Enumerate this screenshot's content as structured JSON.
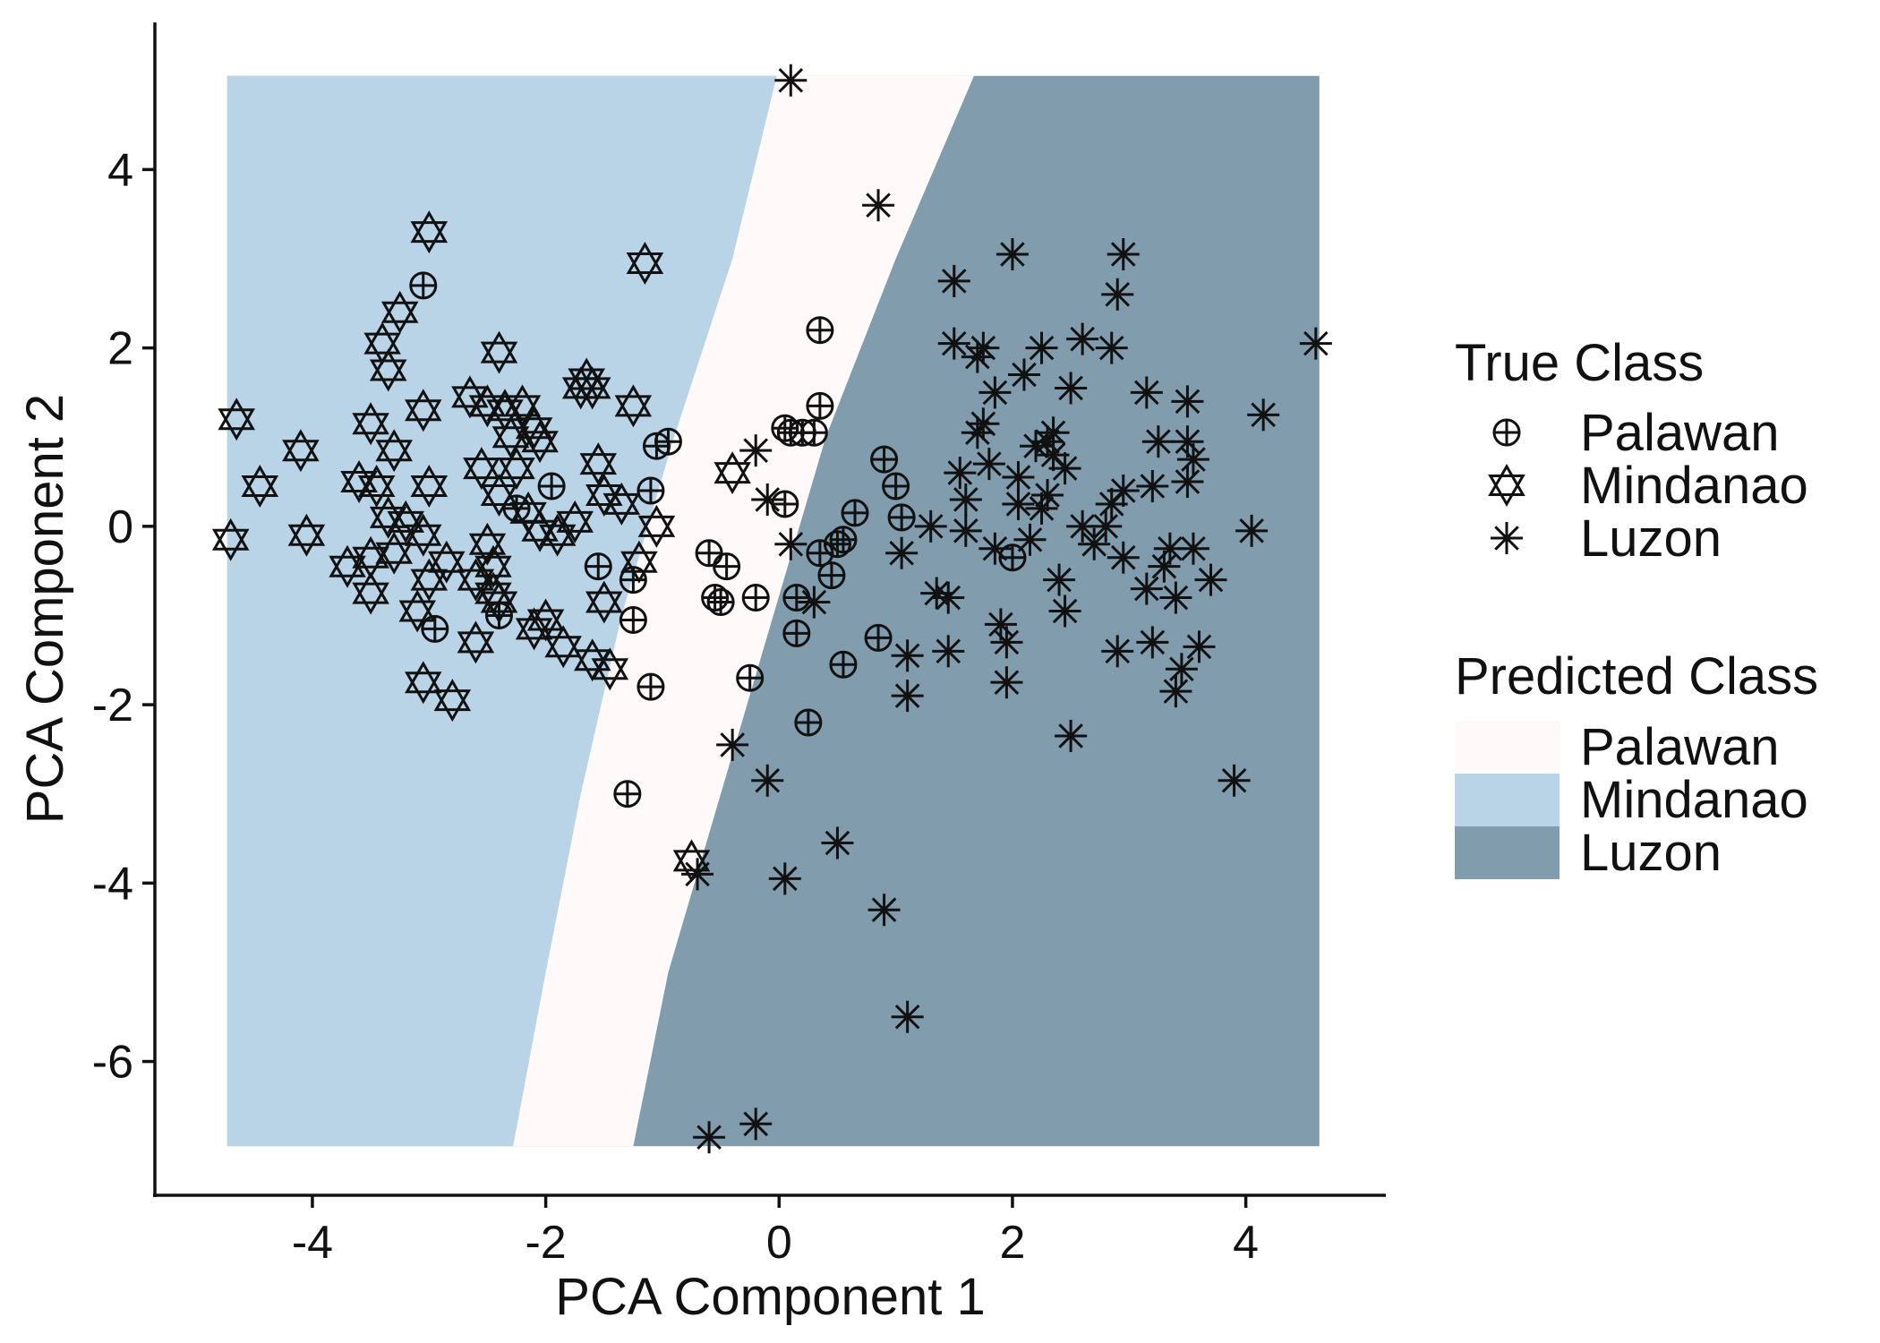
{
  "chart_data": {
    "type": "scatter",
    "title": "",
    "xlabel": "PCA Component 1",
    "ylabel": "PCA Component 2",
    "xlim": [
      -5.35,
      5.2
    ],
    "ylim": [
      -7.5,
      5.65
    ],
    "x_ticks": [
      -4,
      -2,
      0,
      2,
      4
    ],
    "y_ticks": [
      -6,
      -4,
      -2,
      0,
      2,
      4
    ],
    "x_tick_labels": [
      "-4",
      "-2",
      "0",
      "2",
      "4"
    ],
    "y_tick_labels": [
      "-6",
      "-4",
      "-2",
      "0",
      "2",
      "4"
    ],
    "grid": false,
    "legend_placement": "right",
    "true_class_legend": {
      "title": "True Class",
      "entries": [
        {
          "label": "Palawan",
          "marker": "circle-plus"
        },
        {
          "label": "Mindanao",
          "marker": "hexagram"
        },
        {
          "label": "Luzon",
          "marker": "asterisk"
        }
      ]
    },
    "predicted_class_legend": {
      "title": "Predicted Class",
      "entries": [
        {
          "label": "Palawan",
          "color": "#fff9fa"
        },
        {
          "label": "Mindanao",
          "color": "#b9d4e6"
        },
        {
          "label": "Luzon",
          "color": "#809cad"
        }
      ]
    },
    "decision_regions": {
      "x_range": [
        -4.73,
        4.63
      ],
      "y_range": [
        -6.95,
        5.05
      ],
      "boundary_mindanao_palawan": [
        [
          -2.28,
          -6.95
        ],
        [
          -2.0,
          -5.0
        ],
        [
          -1.7,
          -3.0
        ],
        [
          -1.35,
          -1.0
        ],
        [
          -0.9,
          1.0
        ],
        [
          -0.4,
          3.0
        ],
        [
          -0.02,
          5.05
        ]
      ],
      "boundary_palawan_luzon": [
        [
          -1.25,
          -6.95
        ],
        [
          -0.95,
          -5.0
        ],
        [
          -0.5,
          -3.0
        ],
        [
          -0.05,
          -1.0
        ],
        [
          0.4,
          1.0
        ],
        [
          1.0,
          3.0
        ],
        [
          1.67,
          5.05
        ]
      ]
    },
    "series": [
      {
        "name": "Palawan",
        "marker": "circle-plus",
        "points": [
          [
            -3.05,
            2.7
          ],
          [
            -2.95,
            -1.15
          ],
          [
            -2.4,
            -1.0
          ],
          [
            -2.25,
            0.2
          ],
          [
            -1.95,
            0.45
          ],
          [
            -1.55,
            -0.45
          ],
          [
            -1.25,
            -1.05
          ],
          [
            -1.25,
            -0.6
          ],
          [
            -1.1,
            0.4
          ],
          [
            -1.1,
            -1.8
          ],
          [
            -1.05,
            0.9
          ],
          [
            -0.95,
            0.95
          ],
          [
            -1.3,
            -3.0
          ],
          [
            -0.6,
            -0.3
          ],
          [
            -0.55,
            -0.8
          ],
          [
            -0.5,
            -0.85
          ],
          [
            -0.45,
            -0.45
          ],
          [
            -0.25,
            -1.7
          ],
          [
            -0.2,
            -0.8
          ],
          [
            0.05,
            0.25
          ],
          [
            0.05,
            1.1
          ],
          [
            0.1,
            1.05
          ],
          [
            0.15,
            -0.8
          ],
          [
            0.15,
            -1.2
          ],
          [
            0.2,
            1.05
          ],
          [
            0.3,
            1.05
          ],
          [
            0.35,
            2.2
          ],
          [
            0.35,
            1.35
          ],
          [
            0.35,
            -0.3
          ],
          [
            0.25,
            -2.2
          ],
          [
            0.45,
            -0.55
          ],
          [
            0.5,
            -0.2
          ],
          [
            0.55,
            -0.15
          ],
          [
            0.55,
            -1.55
          ],
          [
            0.65,
            0.15
          ],
          [
            0.85,
            -1.25
          ],
          [
            0.9,
            0.75
          ],
          [
            1.0,
            0.45
          ],
          [
            1.05,
            0.1
          ],
          [
            2.0,
            -0.35
          ]
        ]
      },
      {
        "name": "Mindanao",
        "marker": "hexagram",
        "points": [
          [
            -4.65,
            1.2
          ],
          [
            -4.7,
            -0.15
          ],
          [
            -4.45,
            0.45
          ],
          [
            -4.1,
            0.85
          ],
          [
            -4.05,
            -0.1
          ],
          [
            -3.7,
            -0.45
          ],
          [
            -3.6,
            0.5
          ],
          [
            -3.5,
            -0.35
          ],
          [
            -3.5,
            -0.75
          ],
          [
            -3.5,
            1.15
          ],
          [
            -3.45,
            0.45
          ],
          [
            -3.4,
            2.05
          ],
          [
            -3.35,
            1.75
          ],
          [
            -3.3,
            -0.3
          ],
          [
            -3.3,
            0.85
          ],
          [
            -3.35,
            0.1
          ],
          [
            -3.25,
            2.4
          ],
          [
            -3.2,
            0.05
          ],
          [
            -3.05,
            1.3
          ],
          [
            -3.05,
            -0.1
          ],
          [
            -3.0,
            0.45
          ],
          [
            -3.0,
            -0.6
          ],
          [
            -3.0,
            3.3
          ],
          [
            -3.1,
            -0.95
          ],
          [
            -3.05,
            -1.75
          ],
          [
            -2.8,
            -1.95
          ],
          [
            -2.85,
            -0.4
          ],
          [
            -2.65,
            1.45
          ],
          [
            -2.6,
            -0.6
          ],
          [
            -2.6,
            -1.3
          ],
          [
            -2.55,
            0.65
          ],
          [
            -2.5,
            -0.2
          ],
          [
            -2.5,
            1.35
          ],
          [
            -2.45,
            -0.45
          ],
          [
            -2.45,
            -0.75
          ],
          [
            -2.4,
            1.95
          ],
          [
            -2.4,
            0.35
          ],
          [
            -2.4,
            -0.85
          ],
          [
            -2.35,
            1.3
          ],
          [
            -2.3,
            1.0
          ],
          [
            -2.25,
            0.65
          ],
          [
            -2.2,
            1.35
          ],
          [
            -2.15,
            0.15
          ],
          [
            -2.1,
            1.1
          ],
          [
            -2.05,
            0.95
          ],
          [
            -2.1,
            -1.15
          ],
          [
            -2.0,
            -1.05
          ],
          [
            -2.05,
            -0.05
          ],
          [
            -1.9,
            -0.1
          ],
          [
            -1.85,
            -1.35
          ],
          [
            -1.75,
            0.05
          ],
          [
            -1.7,
            1.55
          ],
          [
            -1.65,
            1.65
          ],
          [
            -1.6,
            1.55
          ],
          [
            -1.6,
            -1.5
          ],
          [
            -1.55,
            0.7
          ],
          [
            -1.5,
            0.35
          ],
          [
            -1.5,
            -0.85
          ],
          [
            -1.45,
            -1.6
          ],
          [
            -1.35,
            0.25
          ],
          [
            -1.25,
            1.35
          ],
          [
            -1.2,
            -0.4
          ],
          [
            -1.15,
            2.95
          ],
          [
            -1.05,
            0.0
          ],
          [
            -0.75,
            -3.75
          ],
          [
            -0.4,
            0.6
          ]
        ]
      },
      {
        "name": "Luzon",
        "marker": "asterisk",
        "points": [
          [
            0.1,
            5.0
          ],
          [
            0.85,
            3.6
          ],
          [
            -0.2,
            0.85
          ],
          [
            -0.1,
            0.3
          ],
          [
            0.1,
            -0.2
          ],
          [
            0.3,
            -0.85
          ],
          [
            -0.4,
            -2.45
          ],
          [
            -0.1,
            -2.85
          ],
          [
            -0.6,
            -6.85
          ],
          [
            -0.2,
            -6.7
          ],
          [
            -0.7,
            -3.9
          ],
          [
            0.05,
            -3.95
          ],
          [
            0.5,
            -3.55
          ],
          [
            0.9,
            -4.3
          ],
          [
            1.1,
            -5.5
          ],
          [
            1.05,
            -0.3
          ],
          [
            1.1,
            -1.9
          ],
          [
            1.1,
            -1.45
          ],
          [
            1.3,
            0.0
          ],
          [
            1.35,
            -0.75
          ],
          [
            1.45,
            -0.8
          ],
          [
            1.45,
            -1.4
          ],
          [
            1.5,
            2.75
          ],
          [
            1.5,
            2.05
          ],
          [
            1.55,
            0.6
          ],
          [
            1.6,
            -0.05
          ],
          [
            1.6,
            0.3
          ],
          [
            1.7,
            1.05
          ],
          [
            1.7,
            1.9
          ],
          [
            1.75,
            2.0
          ],
          [
            1.75,
            1.15
          ],
          [
            1.8,
            0.7
          ],
          [
            1.85,
            1.5
          ],
          [
            1.85,
            -0.25
          ],
          [
            1.9,
            -1.1
          ],
          [
            1.95,
            -1.75
          ],
          [
            1.95,
            -1.3
          ],
          [
            2.0,
            3.05
          ],
          [
            2.05,
            0.25
          ],
          [
            2.05,
            0.55
          ],
          [
            2.1,
            1.7
          ],
          [
            2.15,
            -0.15
          ],
          [
            2.2,
            0.9
          ],
          [
            2.25,
            0.2
          ],
          [
            2.25,
            2.0
          ],
          [
            2.3,
            0.95
          ],
          [
            2.3,
            0.35
          ],
          [
            2.35,
            1.05
          ],
          [
            2.35,
            0.8
          ],
          [
            2.4,
            -0.6
          ],
          [
            2.45,
            0.65
          ],
          [
            2.45,
            -0.95
          ],
          [
            2.5,
            1.55
          ],
          [
            2.5,
            -2.35
          ],
          [
            2.6,
            2.1
          ],
          [
            2.7,
            -0.2
          ],
          [
            2.8,
            0.0
          ],
          [
            2.85,
            0.25
          ],
          [
            2.85,
            2.0
          ],
          [
            2.9,
            2.6
          ],
          [
            2.9,
            -1.4
          ],
          [
            2.95,
            3.05
          ],
          [
            2.95,
            0.4
          ],
          [
            2.95,
            -0.35
          ],
          [
            3.15,
            1.5
          ],
          [
            3.15,
            -0.7
          ],
          [
            3.2,
            -1.3
          ],
          [
            3.2,
            0.45
          ],
          [
            3.25,
            0.95
          ],
          [
            3.3,
            -0.45
          ],
          [
            3.35,
            -0.25
          ],
          [
            3.4,
            -0.8
          ],
          [
            3.4,
            -1.85
          ],
          [
            3.45,
            -1.6
          ],
          [
            3.5,
            1.4
          ],
          [
            3.5,
            0.95
          ],
          [
            3.5,
            0.5
          ],
          [
            3.55,
            0.75
          ],
          [
            3.55,
            -0.25
          ],
          [
            3.6,
            -1.35
          ],
          [
            3.7,
            -0.6
          ],
          [
            3.9,
            -2.85
          ],
          [
            4.05,
            -0.05
          ],
          [
            4.15,
            1.25
          ],
          [
            4.6,
            2.05
          ],
          [
            2.6,
            0.0
          ]
        ]
      }
    ]
  }
}
